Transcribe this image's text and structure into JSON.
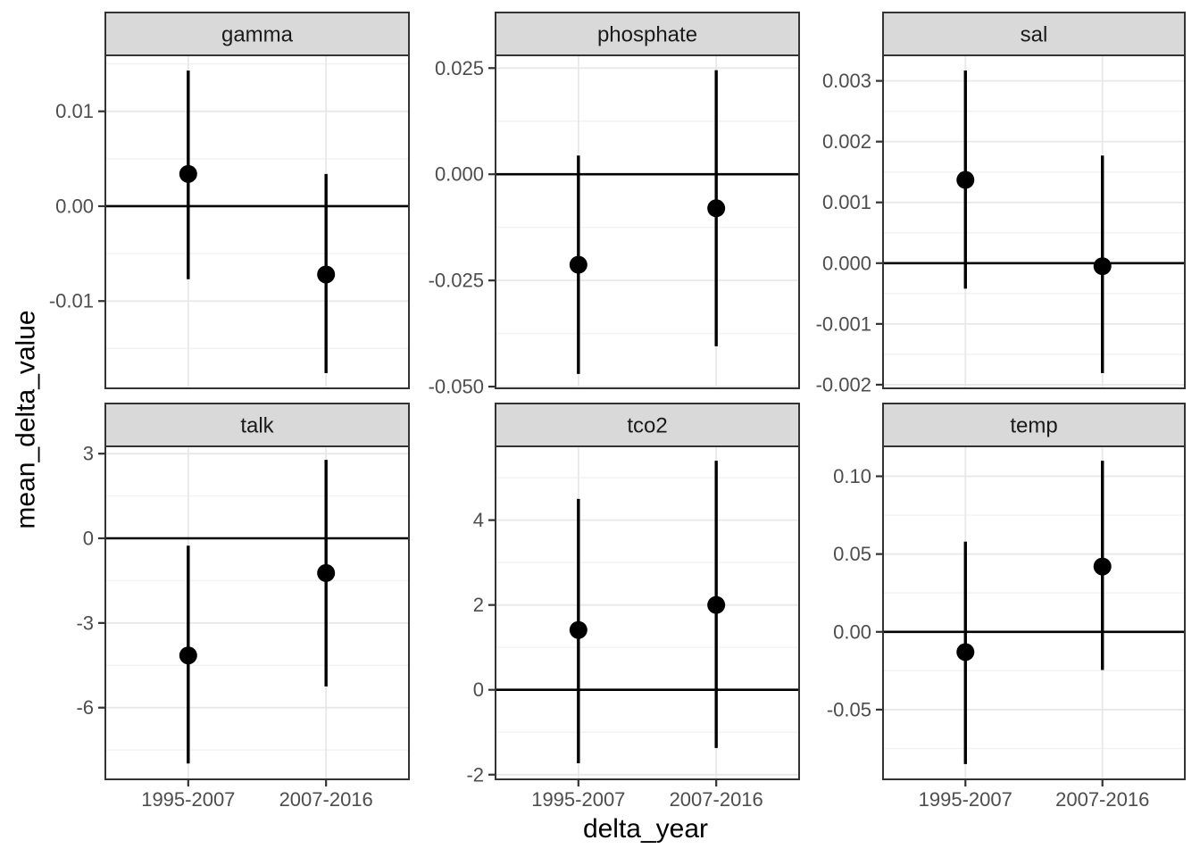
{
  "chart_data": {
    "type": "pointrange_facets",
    "title": "",
    "xlabel": "delta_year",
    "ylabel": "mean_delta_value",
    "x_categories": [
      "1995-2007",
      "2007-2016"
    ],
    "legend": "none",
    "grid": "on",
    "zero_line": true,
    "facets": [
      {
        "name": "gamma",
        "ylim": [
          -0.0192,
          0.0159
        ],
        "ticks": [
          {
            "value": 0.01,
            "label": "0.01"
          },
          {
            "value": 0.0,
            "label": "0.00"
          },
          {
            "value": -0.01,
            "label": "-0.01"
          }
        ],
        "minor_ticks": [
          0.015,
          0.005,
          -0.005,
          -0.015
        ],
        "points": [
          {
            "x": "1995-2007",
            "y": 0.0034,
            "ymin": -0.0077,
            "ymax": 0.0143
          },
          {
            "x": "2007-2016",
            "y": -0.0072,
            "ymin": -0.0176,
            "ymax": 0.0034
          }
        ]
      },
      {
        "name": "phosphate",
        "ylim": [
          -0.0504,
          0.028
        ],
        "ticks": [
          {
            "value": 0.025,
            "label": "0.025"
          },
          {
            "value": 0.0,
            "label": "0.000"
          },
          {
            "value": -0.025,
            "label": "-0.025"
          },
          {
            "value": -0.05,
            "label": "-0.050"
          }
        ],
        "minor_ticks": [
          0.0125,
          -0.0125,
          -0.0375
        ],
        "points": [
          {
            "x": "1995-2007",
            "y": -0.0213,
            "ymin": -0.047,
            "ymax": 0.0044
          },
          {
            "x": "2007-2016",
            "y": -0.008,
            "ymin": -0.0405,
            "ymax": 0.0245
          }
        ]
      },
      {
        "name": "sal",
        "ylim": [
          -0.00206,
          0.00342
        ],
        "ticks": [
          {
            "value": 0.003,
            "label": "0.003"
          },
          {
            "value": 0.002,
            "label": "0.002"
          },
          {
            "value": 0.001,
            "label": "0.001"
          },
          {
            "value": 0.0,
            "label": "0.000"
          },
          {
            "value": -0.001,
            "label": "-0.001"
          },
          {
            "value": -0.002,
            "label": "-0.002"
          }
        ],
        "minor_ticks": [
          0.0025,
          0.0015,
          0.0005,
          -0.0005,
          -0.0015
        ],
        "points": [
          {
            "x": "1995-2007",
            "y": 0.00137,
            "ymin": -0.00042,
            "ymax": 0.00317
          },
          {
            "x": "2007-2016",
            "y": -5e-05,
            "ymin": -0.00181,
            "ymax": 0.00177
          }
        ]
      },
      {
        "name": "talk",
        "ylim": [
          -8.54,
          3.29
        ],
        "ticks": [
          {
            "value": 3,
            "label": "3"
          },
          {
            "value": 0,
            "label": "0"
          },
          {
            "value": -3,
            "label": "-3"
          },
          {
            "value": -6,
            "label": "-6"
          }
        ],
        "minor_ticks": [
          1.5,
          -1.5,
          -4.5,
          -7.5
        ],
        "points": [
          {
            "x": "1995-2007",
            "y": -4.15,
            "ymin": -7.98,
            "ymax": -0.26
          },
          {
            "x": "2007-2016",
            "y": -1.23,
            "ymin": -5.25,
            "ymax": 2.78
          }
        ]
      },
      {
        "name": "tco2",
        "ylim": [
          -2.11,
          5.76
        ],
        "ticks": [
          {
            "value": 4,
            "label": "4"
          },
          {
            "value": 2,
            "label": "2"
          },
          {
            "value": 0,
            "label": "0"
          },
          {
            "value": -2,
            "label": "-2"
          }
        ],
        "minor_ticks": [
          5,
          3,
          1,
          -1
        ],
        "points": [
          {
            "x": "1995-2007",
            "y": 1.41,
            "ymin": -1.73,
            "ymax": 4.5
          },
          {
            "x": "2007-2016",
            "y": 2.0,
            "ymin": -1.37,
            "ymax": 5.4
          }
        ]
      },
      {
        "name": "temp",
        "ylim": [
          -0.0948,
          0.1198
        ],
        "ticks": [
          {
            "value": 0.1,
            "label": "0.10"
          },
          {
            "value": 0.05,
            "label": "0.05"
          },
          {
            "value": 0.0,
            "label": "0.00"
          },
          {
            "value": -0.05,
            "label": "-0.05"
          }
        ],
        "minor_ticks": [
          0.075,
          0.025,
          -0.025,
          -0.075
        ],
        "points": [
          {
            "x": "1995-2007",
            "y": -0.013,
            "ymin": -0.085,
            "ymax": 0.058
          },
          {
            "x": "2007-2016",
            "y": 0.042,
            "ymin": -0.0245,
            "ymax": 0.11
          }
        ]
      }
    ]
  },
  "style": {
    "panel_background": "#ffffff",
    "strip_background": "#d9d9d9",
    "panel_border": "#333333",
    "grid_major": "#e8e8e8",
    "grid_minor": "#f2f2f2",
    "tick_mark": "#333333",
    "tick_label_color": "#4d4d4d",
    "strip_text_color": "#1a1a1a",
    "data_color": "#000000"
  }
}
